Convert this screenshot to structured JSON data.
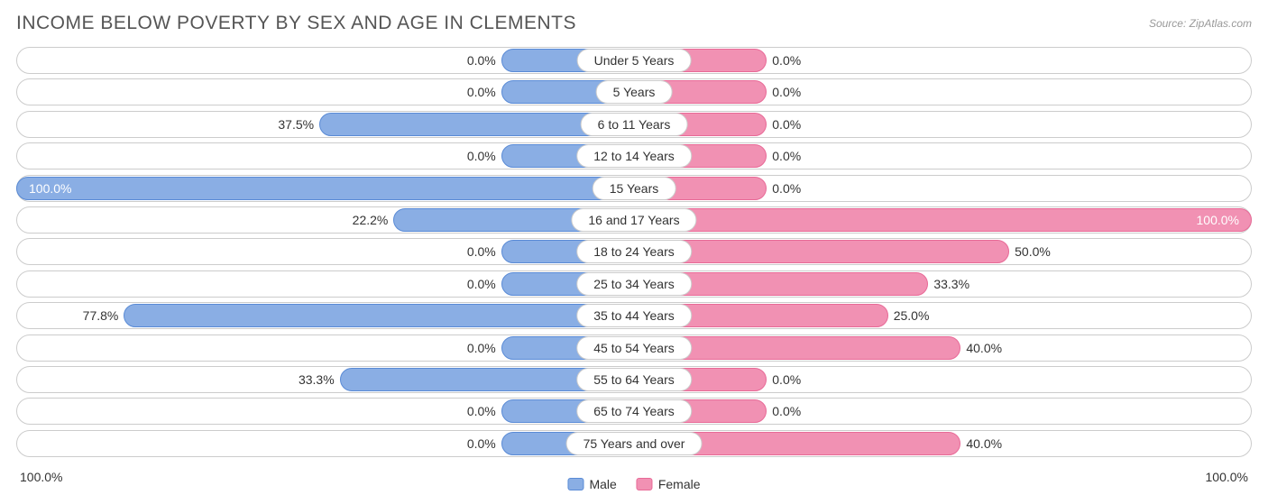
{
  "title": "INCOME BELOW POVERTY BY SEX AND AGE IN CLEMENTS",
  "source": "Source: ZipAtlas.com",
  "colors": {
    "male_fill": "#8aaee4",
    "male_border": "#5a8bd6",
    "female_fill": "#f191b3",
    "female_border": "#e86a97",
    "track_border": "#cccccc",
    "text": "#333333",
    "title_text": "#555555",
    "source_text": "#999999"
  },
  "axis": {
    "left": "100.0%",
    "right": "100.0%"
  },
  "legend": {
    "male": "Male",
    "female": "Female"
  },
  "min_bar_pct": 21.5,
  "rows": [
    {
      "label": "Under 5 Years",
      "male": 0.0,
      "female": 0.0
    },
    {
      "label": "5 Years",
      "male": 0.0,
      "female": 0.0
    },
    {
      "label": "6 to 11 Years",
      "male": 37.5,
      "female": 0.0
    },
    {
      "label": "12 to 14 Years",
      "male": 0.0,
      "female": 0.0
    },
    {
      "label": "15 Years",
      "male": 100.0,
      "female": 0.0
    },
    {
      "label": "16 and 17 Years",
      "male": 22.2,
      "female": 100.0
    },
    {
      "label": "18 to 24 Years",
      "male": 0.0,
      "female": 50.0
    },
    {
      "label": "25 to 34 Years",
      "male": 0.0,
      "female": 33.3
    },
    {
      "label": "35 to 44 Years",
      "male": 77.8,
      "female": 25.0
    },
    {
      "label": "45 to 54 Years",
      "male": 0.0,
      "female": 40.0
    },
    {
      "label": "55 to 64 Years",
      "male": 33.3,
      "female": 0.0
    },
    {
      "label": "65 to 74 Years",
      "male": 0.0,
      "female": 0.0
    },
    {
      "label": "75 Years and over",
      "male": 0.0,
      "female": 40.0
    }
  ]
}
